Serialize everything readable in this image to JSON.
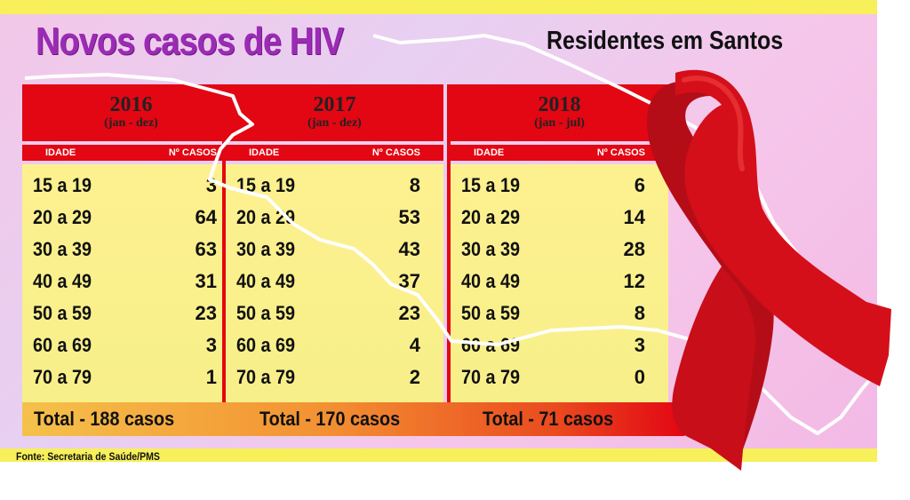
{
  "title": "Novos casos de HIV",
  "subtitle": "Residentes em Santos",
  "column_headers": {
    "age": "IDADE",
    "cases": "Nº CASOS"
  },
  "panels": [
    {
      "year": "2016",
      "period": "(jan - dez)",
      "rows": [
        {
          "age": "15 a 19",
          "cases": "3"
        },
        {
          "age": "20 a 29",
          "cases": "64"
        },
        {
          "age": "30 a 39",
          "cases": "63"
        },
        {
          "age": "40 a 49",
          "cases": "31"
        },
        {
          "age": "50 a 59",
          "cases": "23"
        },
        {
          "age": "60 a 69",
          "cases": "3"
        },
        {
          "age": "70 a 79",
          "cases": "1"
        }
      ],
      "total": "Total - 188 casos"
    },
    {
      "year": "2017",
      "period": "(jan - dez)",
      "rows": [
        {
          "age": "15 a 19",
          "cases": "8"
        },
        {
          "age": "20 a 29",
          "cases": "53"
        },
        {
          "age": "30 a 39",
          "cases": "43"
        },
        {
          "age": "40 a 49",
          "cases": "37"
        },
        {
          "age": "50 a 59",
          "cases": "23"
        },
        {
          "age": "60 a 69",
          "cases": "4"
        },
        {
          "age": "70 a 79",
          "cases": "2"
        }
      ],
      "total": "Total - 170 casos"
    },
    {
      "year": "2018",
      "period": "(jan - jul)",
      "rows": [
        {
          "age": "15 a 19",
          "cases": "6"
        },
        {
          "age": "20 a 29",
          "cases": "14"
        },
        {
          "age": "30 a 39",
          "cases": "28"
        },
        {
          "age": "40 a 49",
          "cases": "12"
        },
        {
          "age": "50 a 59",
          "cases": "8"
        },
        {
          "age": "60 a 69",
          "cases": "3"
        },
        {
          "age": "70 a 79",
          "cases": "0"
        }
      ],
      "total": "Total - 71 casos"
    }
  ],
  "source": "Fonte: Secretaria de Saúde/PMS",
  "colors": {
    "title": "#9b2bb5",
    "header_red": "#e30613",
    "table_yellow": "#fdf18f",
    "band_yellow": "#f7f05a",
    "ribbon_red": "#d40f1a"
  },
  "icons": [
    "red-ribbon-icon",
    "santos-map-outline"
  ]
}
